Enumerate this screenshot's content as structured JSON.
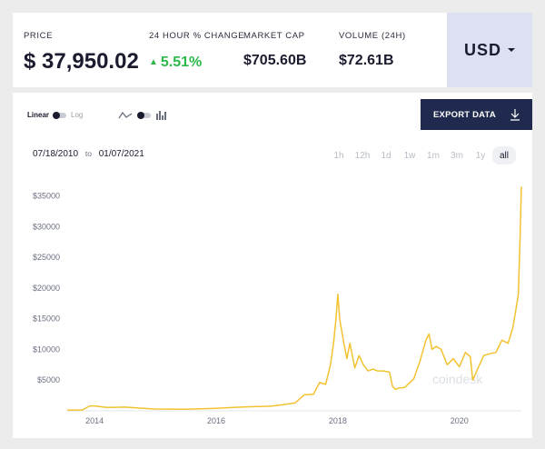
{
  "stats": {
    "price": {
      "label": "PRICE",
      "value": "$ 37,950.02"
    },
    "change": {
      "label": "24 HOUR % CHANGE",
      "value": "5.51%"
    },
    "market_cap": {
      "label": "MARKET CAP",
      "value": "$705.60B"
    },
    "volume": {
      "label": "VOLUME (24H)",
      "value": "$72.61B"
    },
    "currency": "USD"
  },
  "controls": {
    "scale_linear": "Linear",
    "scale_log": "Log",
    "export_label": "EXPORT DATA",
    "date_from": "07/18/2010",
    "date_to_word": "to",
    "date_to": "01/07/2021",
    "ranges": [
      "1h",
      "12h",
      "1d",
      "1w",
      "1m",
      "3m",
      "1y",
      "all"
    ],
    "active_range": "all"
  },
  "watermark": "coindesk",
  "colors": {
    "line": "#f2c230",
    "accent_up": "#2db84a",
    "export_bg": "#1f2a4e",
    "currency_bg": "#dde0f1"
  },
  "chart_data": {
    "type": "line",
    "series": [
      {
        "x": [
          2013.55,
          2013.8,
          2013.92,
          2014.0,
          2014.2,
          2014.5,
          2014.8,
          2015.0,
          2015.5,
          2016.0,
          2016.5,
          2016.9,
          2017.1,
          2017.3,
          2017.45,
          2017.6,
          2017.7,
          2017.8,
          2017.88,
          2017.93,
          2017.97,
          2018.0,
          2018.03,
          2018.1,
          2018.15,
          2018.2,
          2018.28,
          2018.35,
          2018.42,
          2018.5,
          2018.58,
          2018.65,
          2018.75,
          2018.85,
          2018.9,
          2018.95,
          2019.0,
          2019.1,
          2019.25,
          2019.35,
          2019.45,
          2019.5,
          2019.55,
          2019.62,
          2019.7,
          2019.8,
          2019.9,
          2020.0,
          2020.1,
          2020.18,
          2020.22,
          2020.3,
          2020.4,
          2020.5,
          2020.6,
          2020.7,
          2020.8,
          2020.88,
          2020.93,
          2020.97,
          2021.0,
          2021.02
        ],
        "values": [
          100,
          150,
          800,
          800,
          550,
          600,
          400,
          300,
          250,
          420,
          650,
          750,
          1000,
          1300,
          2600,
          2700,
          4600,
          4300,
          7500,
          11000,
          15000,
          19000,
          15000,
          11000,
          8500,
          11000,
          7000,
          9000,
          7500,
          6500,
          6800,
          6500,
          6500,
          6300,
          4000,
          3500,
          3700,
          3800,
          5200,
          8000,
          11500,
          12500,
          10000,
          10500,
          10000,
          7500,
          8500,
          7200,
          9500,
          8800,
          5000,
          6800,
          9000,
          9300,
          9500,
          11500,
          11000,
          13500,
          16500,
          19000,
          29000,
          36500
        ]
      }
    ],
    "x_ticks": [
      2014,
      2016,
      2018,
      2020
    ],
    "y_ticks": [
      5000,
      10000,
      15000,
      20000,
      25000,
      30000,
      35000
    ],
    "y_tick_labels": [
      "$5000",
      "$10000",
      "$15000",
      "$20000",
      "$25000",
      "$30000",
      "$35000"
    ],
    "xlim": [
      2013.55,
      2021.02
    ],
    "ylim": [
      0,
      37000
    ],
    "grid": false,
    "legend": "none"
  }
}
